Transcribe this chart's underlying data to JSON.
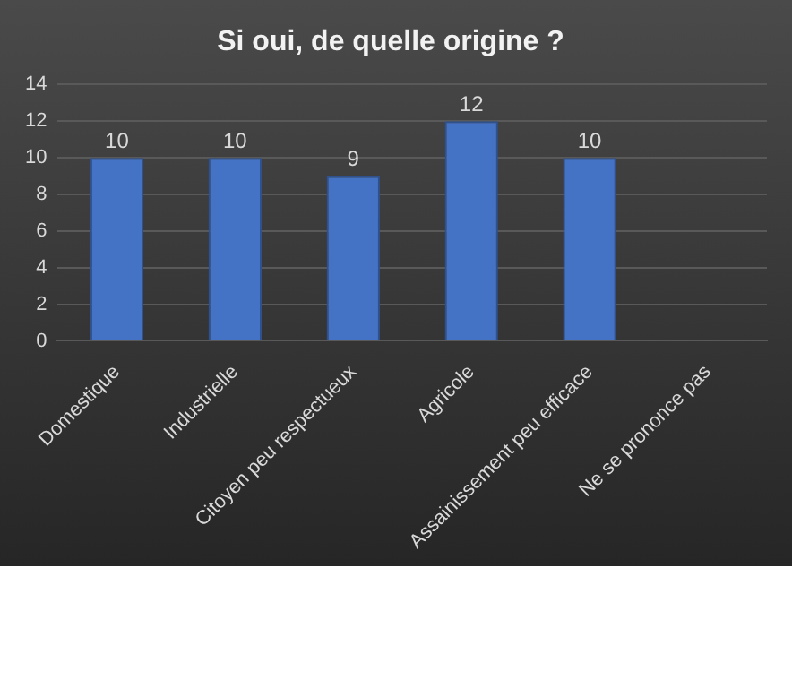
{
  "chart_data": {
    "type": "bar",
    "title": "Si oui, de quelle origine ?",
    "categories": [
      "Domestique",
      "Industrielle",
      "Citoyen peu respectueux",
      "Agricole",
      "Assainissement peu efficace",
      "Ne se prononce pas"
    ],
    "values": [
      10,
      10,
      9,
      12,
      10,
      null
    ],
    "color": "#4472c4",
    "ylim": [
      0,
      14
    ],
    "yticks": [
      0,
      2,
      4,
      6,
      8,
      10,
      12,
      14
    ],
    "grid": "y",
    "data_labels": true,
    "legend": false
  }
}
